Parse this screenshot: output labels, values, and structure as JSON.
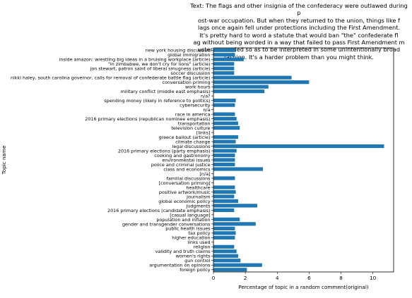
{
  "chart_data": {
    "type": "bar",
    "orientation": "horizontal",
    "title": "Text: The flags and other insignia of the confederacy were outlawed during p\nost-war occupation. But when they returned to the union, things like f\nlags once again fell under protections including the First Amendment.\nIt's pretty hard to word a statute that would ban \"the\" confederate fl\nag without being worded in a way that failed to pass First Amendment m\nuster or worded so as to be interpreted in some unintentionally broad\nfashion. It's a harder problem than you might think.",
    "xlabel": "Percentage of topic in a random comment(original)",
    "ylabel": "Topic name",
    "xlim": [
      0,
      11.3
    ],
    "xticks": [
      0,
      2,
      4,
      6,
      8,
      10
    ],
    "grid": false,
    "bar_color": "#1f77b4",
    "categories": [
      "new york housing discussion",
      "global immigration",
      "inside amazon: wrestling big ideas in a bruising workplace (article)",
      "\"in zimbabwe, we don't cry for lions\" (article)",
      "jon stewart, patron saint of liberal smugness (article)",
      "soccer discussion",
      "nikki haley, south carolina governor, calls for removal of confederate battle flag (article)",
      "conversation priming",
      "work hours",
      "military conflict (middle east emphasis)",
      "n/a?",
      "spending money (likely in reference to politics)",
      "cybersecurity",
      "n/a",
      "race in america",
      "2016 primary elections (republican nominee emphasis)",
      "transportation",
      "television culture",
      "[links]",
      "greece bailout (article)",
      "climate change",
      "legal discussions",
      "2016 primary elections (party emphasis)",
      "cooking and gastronomy",
      "environmental issues",
      "police and criminal justice",
      "class and economics",
      "[n/a]",
      "familial discussions",
      "[conversation priming]",
      "healthcare",
      "positive artwork/music",
      "journalism",
      "global economic policy",
      "judgments",
      "2016 primary elections (candidate emphasis)",
      "[casual language]",
      "population and inflation",
      "gender and transgender conversations",
      "public health issues",
      "tax policy",
      "higher education",
      "links used",
      "religion",
      "validity and truth claims",
      "women's rights",
      "gun control",
      "argumentation on opinions",
      "foreign policy"
    ],
    "values": [
      1.4,
      1.35,
      1.9,
      1.3,
      1.3,
      1.3,
      4.9,
      6.0,
      3.45,
      3.2,
      0.02,
      1.4,
      1.35,
      0.02,
      1.35,
      1.45,
      1.55,
      1.65,
      0.02,
      1.55,
      1.4,
      10.7,
      1.45,
      1.35,
      1.35,
      1.35,
      3.1,
      0.02,
      1.35,
      0.02,
      1.35,
      1.4,
      1.3,
      1.55,
      2.75,
      1.3,
      0.02,
      1.65,
      2.65,
      1.35,
      1.4,
      1.35,
      0.02,
      1.3,
      1.45,
      1.55,
      1.7,
      3.05,
      2.1
    ]
  }
}
